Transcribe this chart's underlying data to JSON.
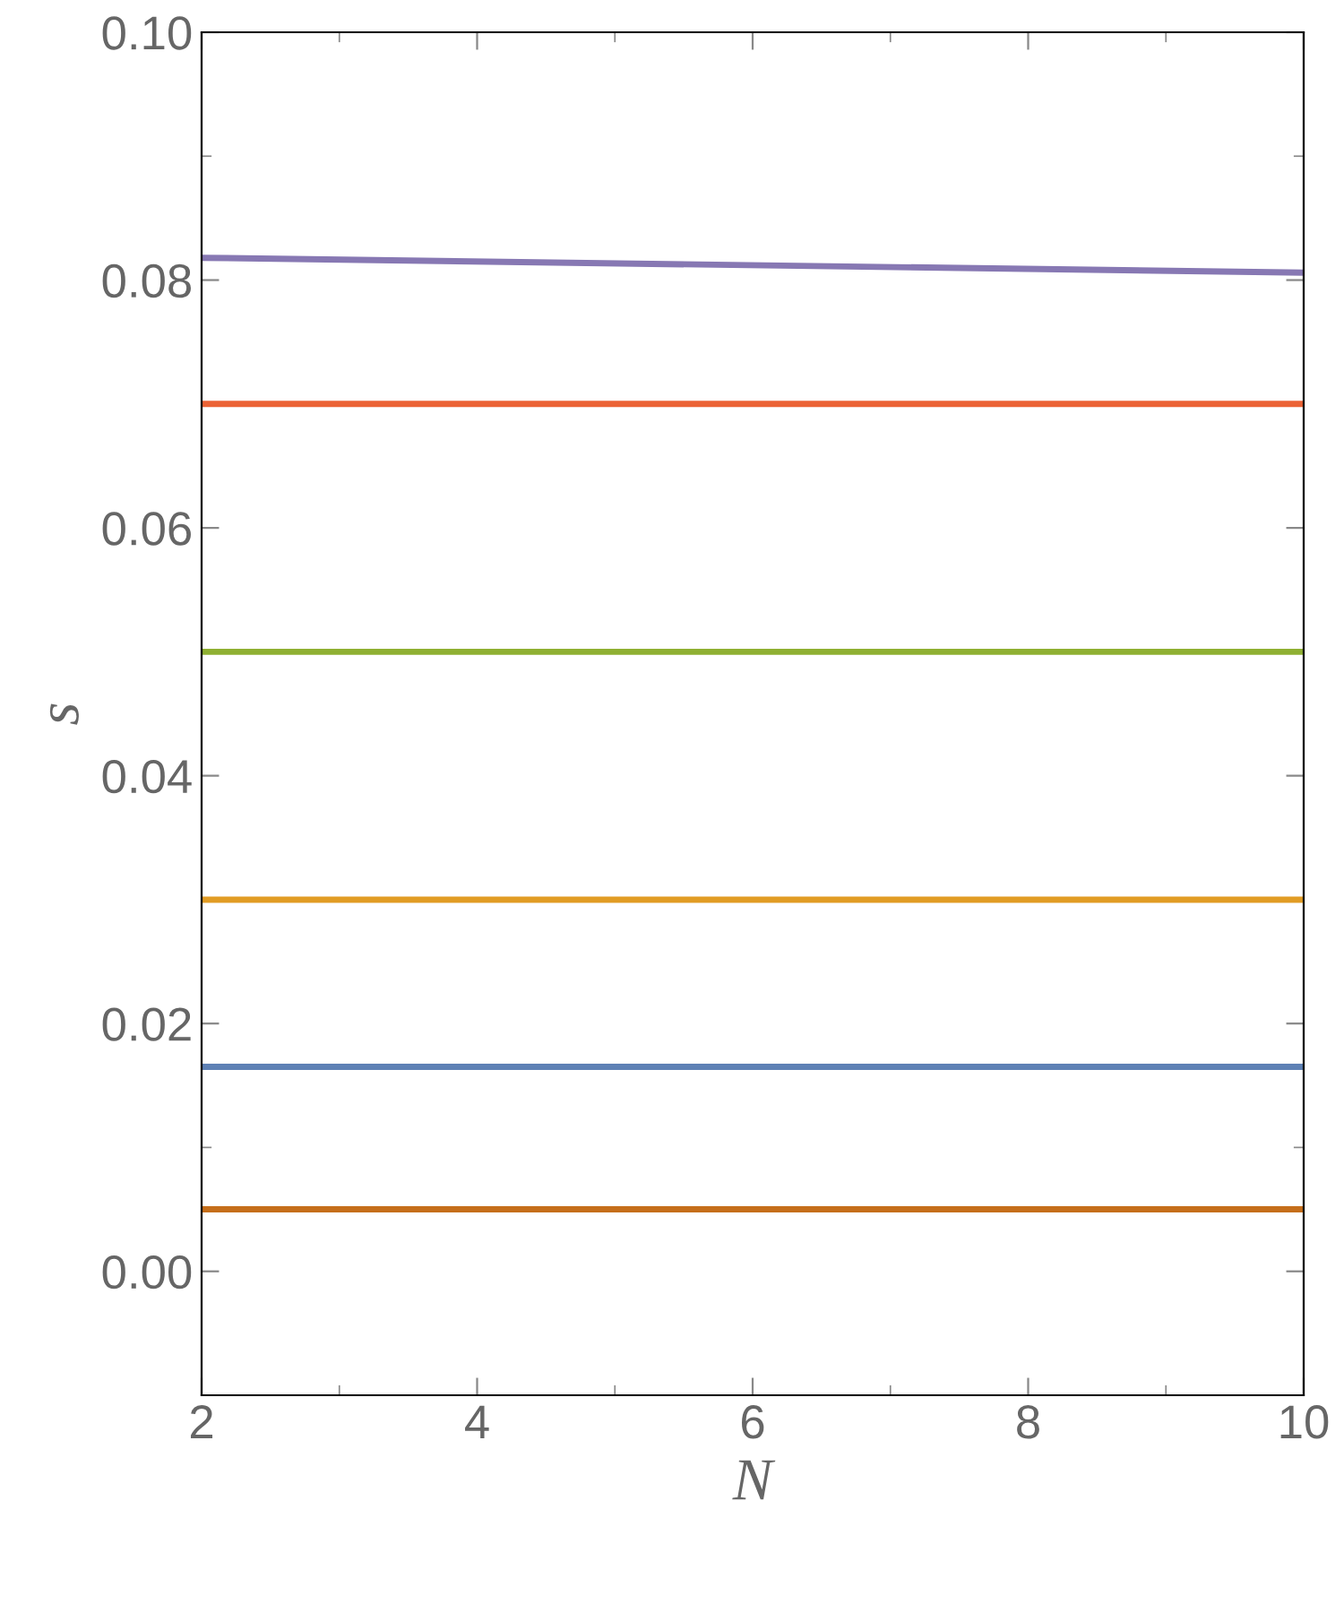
{
  "chart_data": {
    "type": "line",
    "xlabel": "N",
    "ylabel": "s",
    "x": [
      2,
      10
    ],
    "series": [
      {
        "color": "#8778b3",
        "values": [
          0.0818,
          0.0806
        ]
      },
      {
        "color": "#eb6235",
        "values": [
          0.07,
          0.07
        ]
      },
      {
        "color": "#8fb032",
        "values": [
          0.05,
          0.05
        ]
      },
      {
        "color": "#e19c24",
        "values": [
          0.03,
          0.03
        ]
      },
      {
        "color": "#5e81b5",
        "values": [
          0.0165,
          0.0165
        ]
      },
      {
        "color": "#c56e1a",
        "values": [
          0.005,
          0.005
        ]
      }
    ],
    "xlim": [
      2,
      10
    ],
    "ylim": [
      -0.01,
      0.1
    ],
    "xticks": [
      2,
      4,
      6,
      8,
      10
    ],
    "yticks": [
      {
        "value": 0,
        "label": "0.00"
      },
      {
        "value": 0.02,
        "label": "0.02"
      },
      {
        "value": 0.04,
        "label": "0.04"
      },
      {
        "value": 0.06,
        "label": "0.06"
      },
      {
        "value": 0.08,
        "label": "0.08"
      },
      {
        "value": 0.1,
        "label": "0.10"
      }
    ],
    "marker": "none",
    "line_style": "solid",
    "grid": false,
    "legend": false
  }
}
